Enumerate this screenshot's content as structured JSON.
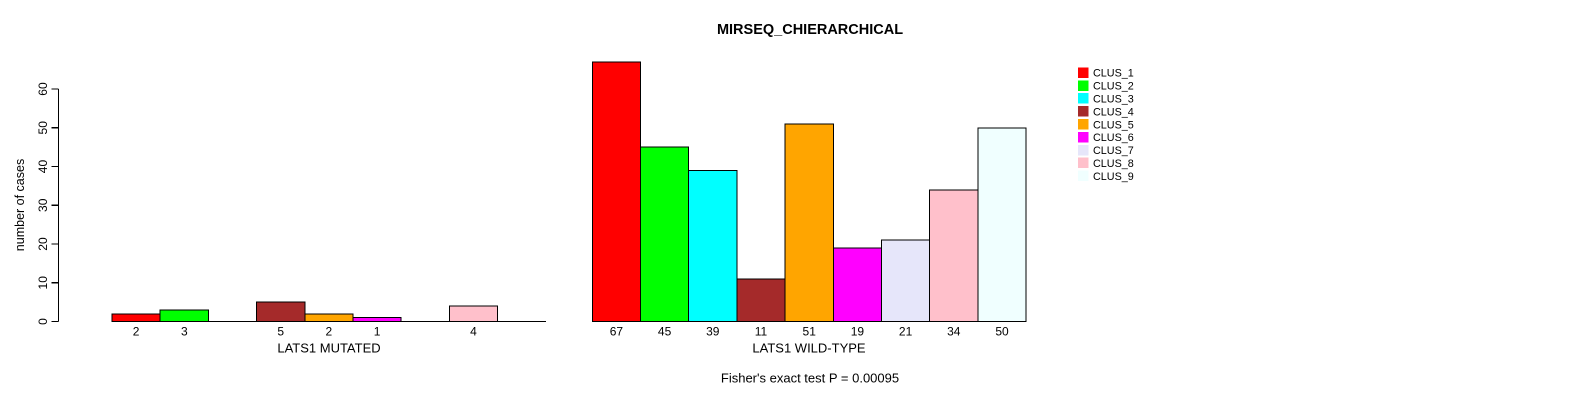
{
  "title": "MIRSEQ_CHIERARCHICAL",
  "y_axis": {
    "label": "number of cases",
    "ticks": [
      0,
      10,
      20,
      30,
      40,
      50,
      60
    ]
  },
  "footer": "Fisher's exact test P = 0.00095",
  "legend": {
    "items": [
      {
        "label": "CLUS_1",
        "color": "#FF0000"
      },
      {
        "label": "CLUS_2",
        "color": "#00FF00"
      },
      {
        "label": "CLUS_3",
        "color": "#00FFFF"
      },
      {
        "label": "CLUS_4",
        "color": "#A52A2A"
      },
      {
        "label": "CLUS_5",
        "color": "#FFA500"
      },
      {
        "label": "CLUS_6",
        "color": "#FF00FF"
      },
      {
        "label": "CLUS_7",
        "color": "#E6E6FA"
      },
      {
        "label": "CLUS_8",
        "color": "#FFC0CB"
      },
      {
        "label": "CLUS_9",
        "color": "#F0FFFF"
      }
    ]
  },
  "chart_data": {
    "type": "bar",
    "title": "MIRSEQ_CHIERARCHICAL",
    "ylabel": "number of cases",
    "xlabel": "",
    "ylim": [
      0,
      60
    ],
    "yticks": [
      0,
      10,
      20,
      30,
      40,
      50,
      60
    ],
    "grid": false,
    "legend_position": "top-right",
    "categories": [
      "CLUS_1",
      "CLUS_2",
      "CLUS_3",
      "CLUS_4",
      "CLUS_5",
      "CLUS_6",
      "CLUS_7",
      "CLUS_8",
      "CLUS_9"
    ],
    "colors": [
      "#FF0000",
      "#00FF00",
      "#00FFFF",
      "#A52A2A",
      "#FFA500",
      "#FF00FF",
      "#E6E6FA",
      "#FFC0CB",
      "#F0FFFF"
    ],
    "series": [
      {
        "name": "LATS1 MUTATED",
        "values": [
          2,
          3,
          0,
          5,
          2,
          1,
          0,
          4,
          0
        ]
      },
      {
        "name": "LATS1 WILD-TYPE",
        "values": [
          67,
          45,
          39,
          11,
          51,
          19,
          21,
          34,
          50
        ]
      }
    ],
    "bar_value_labels_shown": true,
    "zero_bars_hidden": true,
    "annotation": "Fisher's exact test P = 0.00095"
  }
}
